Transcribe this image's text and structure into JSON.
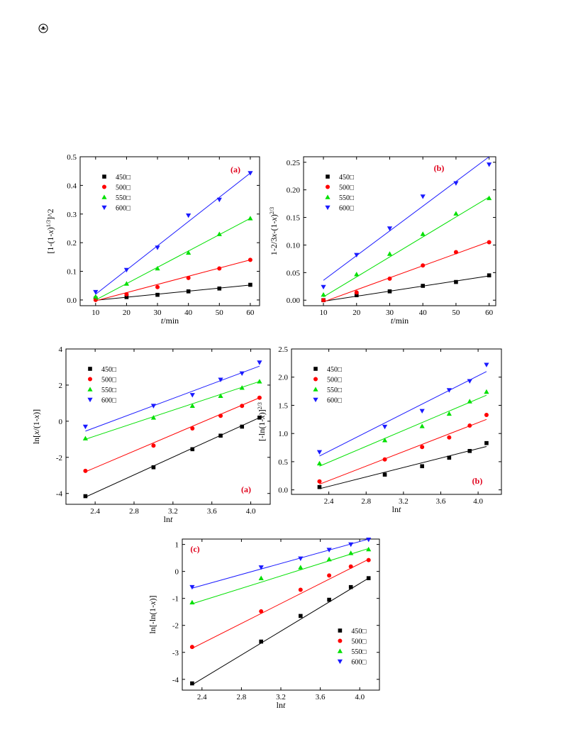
{
  "header": {
    "icon": "publisher-logo-icon"
  },
  "colors": {
    "s450": "#000000",
    "s500": "#ff0000",
    "s550": "#00e000",
    "s600": "#1a1aff"
  },
  "chart_data": [
    {
      "id": "top-a",
      "type": "scatter",
      "panel_label": "(a)",
      "xlabel": "t/min",
      "ylabel": "[1-(1-x)^{1/3}]^2",
      "xlim": [
        5,
        63
      ],
      "ylim": [
        -0.02,
        0.5
      ],
      "xticks": [
        10,
        20,
        30,
        40,
        50,
        60
      ],
      "xtick_labels": [
        "10",
        "20",
        "30",
        "40",
        "50",
        "60"
      ],
      "yticks": [
        0,
        0.1,
        0.2,
        0.3,
        0.4,
        0.5
      ],
      "ytick_labels": [
        "0.0",
        "0.1",
        "0.2",
        "0.3",
        "0.4",
        "0.5"
      ],
      "legend_position": "top-left",
      "x": [
        10,
        20,
        30,
        40,
        50,
        60
      ],
      "series": [
        {
          "name": "450□",
          "values": [
            0.005,
            0.01,
            0.018,
            0.03,
            0.04,
            0.053
          ],
          "fit": [
            [
              10,
              -0.001
            ],
            [
              60,
              0.052
            ]
          ]
        },
        {
          "name": "500□",
          "values": [
            0.0,
            0.02,
            0.045,
            0.077,
            0.11,
            0.14
          ],
          "fit": [
            [
              10,
              -0.003
            ],
            [
              60,
              0.14
            ]
          ]
        },
        {
          "name": "550□",
          "values": [
            0.012,
            0.057,
            0.11,
            0.165,
            0.23,
            0.285
          ],
          "fit": [
            [
              10,
              0.0
            ],
            [
              60,
              0.285
            ]
          ]
        },
        {
          "name": "600□",
          "values": [
            0.028,
            0.105,
            0.183,
            0.295,
            0.35,
            0.443
          ],
          "fit": [
            [
              10,
              0.02
            ],
            [
              60,
              0.443
            ]
          ]
        }
      ]
    },
    {
      "id": "top-b",
      "type": "scatter",
      "panel_label": "(b)",
      "xlabel": "t/min",
      "ylabel": "1-2/3x-(1-x)^{2/3}",
      "xlim": [
        4,
        62
      ],
      "ylim": [
        -0.01,
        0.26
      ],
      "xticks": [
        10,
        20,
        30,
        40,
        50,
        60
      ],
      "xtick_labels": [
        "10",
        "20",
        "30",
        "40",
        "50",
        "60"
      ],
      "yticks": [
        0,
        0.05,
        0.1,
        0.15,
        0.2,
        0.25
      ],
      "ytick_labels": [
        "0.00",
        "0.05",
        "0.10",
        "0.15",
        "0.20",
        "0.25"
      ],
      "legend_position": "top-left",
      "x": [
        10,
        20,
        30,
        40,
        50,
        60
      ],
      "series": [
        {
          "name": "450□",
          "values": [
            0.0,
            0.009,
            0.016,
            0.026,
            0.033,
            0.045
          ],
          "fit": [
            [
              10,
              -0.002
            ],
            [
              60,
              0.044
            ]
          ]
        },
        {
          "name": "500□",
          "values": [
            0.0,
            0.014,
            0.039,
            0.063,
            0.087,
            0.105
          ],
          "fit": [
            [
              10,
              -0.003
            ],
            [
              60,
              0.106
            ]
          ]
        },
        {
          "name": "550□",
          "values": [
            0.01,
            0.047,
            0.084,
            0.12,
            0.157,
            0.185
          ],
          "fit": [
            [
              10,
              0.006
            ],
            [
              60,
              0.187
            ]
          ]
        },
        {
          "name": "600□",
          "values": [
            0.024,
            0.082,
            0.13,
            0.188,
            0.212,
            0.246
          ],
          "fit": [
            [
              10,
              0.036
            ],
            [
              60,
              0.26
            ]
          ]
        }
      ]
    },
    {
      "id": "mid-a",
      "type": "scatter",
      "panel_label": "(a)",
      "xlabel": "lnt",
      "ylabel": "ln[x/(1-x)]",
      "xlim": [
        2.1,
        4.2
      ],
      "ylim": [
        -4.6,
        4.0
      ],
      "xticks": [
        2.4,
        2.8,
        3.2,
        3.6,
        4.0
      ],
      "xtick_labels": [
        "2.4",
        "2.8",
        "3.2",
        "3.6",
        "4.0"
      ],
      "yticks": [
        -4,
        -2,
        0,
        2,
        4
      ],
      "ytick_labels": [
        "-4",
        "-2",
        "0",
        "2",
        "4"
      ],
      "legend_position": "top-left",
      "x": [
        2.3,
        3.0,
        3.4,
        3.69,
        3.91,
        4.09
      ],
      "series": [
        {
          "name": "450□",
          "values": [
            -4.15,
            -2.55,
            -1.55,
            -0.8,
            -0.3,
            0.2
          ],
          "fit": [
            [
              2.3,
              -4.2
            ],
            [
              4.09,
              0.2
            ]
          ]
        },
        {
          "name": "500□",
          "values": [
            -2.75,
            -1.35,
            -0.4,
            0.3,
            0.85,
            1.3
          ],
          "fit": [
            [
              2.3,
              -2.8
            ],
            [
              4.09,
              1.3
            ]
          ]
        },
        {
          "name": "550□",
          "values": [
            -0.95,
            0.2,
            0.85,
            1.4,
            1.85,
            2.2
          ],
          "fit": [
            [
              2.3,
              -1.0
            ],
            [
              4.09,
              2.2
            ]
          ]
        },
        {
          "name": "600□",
          "values": [
            -0.3,
            0.85,
            1.45,
            2.3,
            2.65,
            3.25
          ],
          "fit": [
            [
              2.3,
              -0.55
            ],
            [
              4.09,
              3.05
            ]
          ]
        }
      ]
    },
    {
      "id": "mid-b",
      "type": "scatter",
      "panel_label": "(b)",
      "xlabel": "lnt",
      "ylabel": "[-ln(1-x)]^{2/3}",
      "xlim": [
        2.0,
        4.25
      ],
      "ylim": [
        -0.08,
        2.5
      ],
      "xticks": [
        2.4,
        2.8,
        3.2,
        3.6,
        4.0
      ],
      "xtick_labels": [
        "2.4",
        "2.8",
        "3.2",
        "3.6",
        "4.0"
      ],
      "yticks": [
        0,
        0.5,
        1.0,
        1.5,
        2.0,
        2.5
      ],
      "ytick_labels": [
        "0.0",
        "0.5",
        "1.0",
        "1.5",
        "2.0",
        "2.5"
      ],
      "legend_position": "top-left",
      "x": [
        2.3,
        3.0,
        3.4,
        3.69,
        3.91,
        4.09
      ],
      "series": [
        {
          "name": "450□",
          "values": [
            0.05,
            0.27,
            0.42,
            0.57,
            0.69,
            0.83
          ],
          "fit": [
            [
              2.3,
              0.02
            ],
            [
              4.09,
              0.77
            ]
          ]
        },
        {
          "name": "500□",
          "values": [
            0.15,
            0.54,
            0.76,
            0.93,
            1.14,
            1.33
          ],
          "fit": [
            [
              2.3,
              0.1
            ],
            [
              4.09,
              1.25
            ]
          ]
        },
        {
          "name": "550□",
          "values": [
            0.47,
            0.88,
            1.13,
            1.35,
            1.57,
            1.74
          ],
          "fit": [
            [
              2.3,
              0.42
            ],
            [
              4.09,
              1.68
            ]
          ]
        },
        {
          "name": "600□",
          "values": [
            0.67,
            1.12,
            1.4,
            1.77,
            1.93,
            2.22
          ],
          "fit": [
            [
              2.3,
              0.6
            ],
            [
              4.09,
              2.1
            ]
          ]
        }
      ]
    },
    {
      "id": "bottom-c",
      "type": "scatter",
      "panel_label": "(c)",
      "xlabel": "lnt",
      "ylabel": "ln[-ln(1-x)]",
      "xlim": [
        2.2,
        4.2
      ],
      "ylim": [
        -4.4,
        1.2
      ],
      "xticks": [
        2.4,
        2.8,
        3.2,
        3.6,
        4.0
      ],
      "xtick_labels": [
        "2.4",
        "2.8",
        "3.2",
        "3.6",
        "4.0"
      ],
      "yticks": [
        -4,
        -3,
        -2,
        -1,
        0,
        1
      ],
      "ytick_labels": [
        "-4",
        "-3",
        "-2",
        "-1",
        "0",
        "1"
      ],
      "legend_position": "bottom-right",
      "x": [
        2.3,
        3.0,
        3.4,
        3.69,
        3.91,
        4.09
      ],
      "series": [
        {
          "name": "450□",
          "values": [
            -4.15,
            -2.6,
            -1.65,
            -1.05,
            -0.58,
            -0.25
          ],
          "fit": [
            [
              2.3,
              -4.2
            ],
            [
              4.09,
              -0.25
            ]
          ]
        },
        {
          "name": "500□",
          "values": [
            -2.8,
            -1.48,
            -0.68,
            -0.15,
            0.18,
            0.42
          ],
          "fit": [
            [
              2.3,
              -2.85
            ],
            [
              4.09,
              0.45
            ]
          ]
        },
        {
          "name": "550□",
          "values": [
            -1.15,
            -0.25,
            0.15,
            0.45,
            0.68,
            0.82
          ],
          "fit": [
            [
              2.3,
              -1.2
            ],
            [
              4.09,
              0.85
            ]
          ]
        },
        {
          "name": "600□",
          "values": [
            -0.58,
            0.15,
            0.48,
            0.8,
            1.0,
            1.18
          ],
          "fit": [
            [
              2.3,
              -0.62
            ],
            [
              4.09,
              1.2
            ]
          ]
        }
      ]
    }
  ]
}
